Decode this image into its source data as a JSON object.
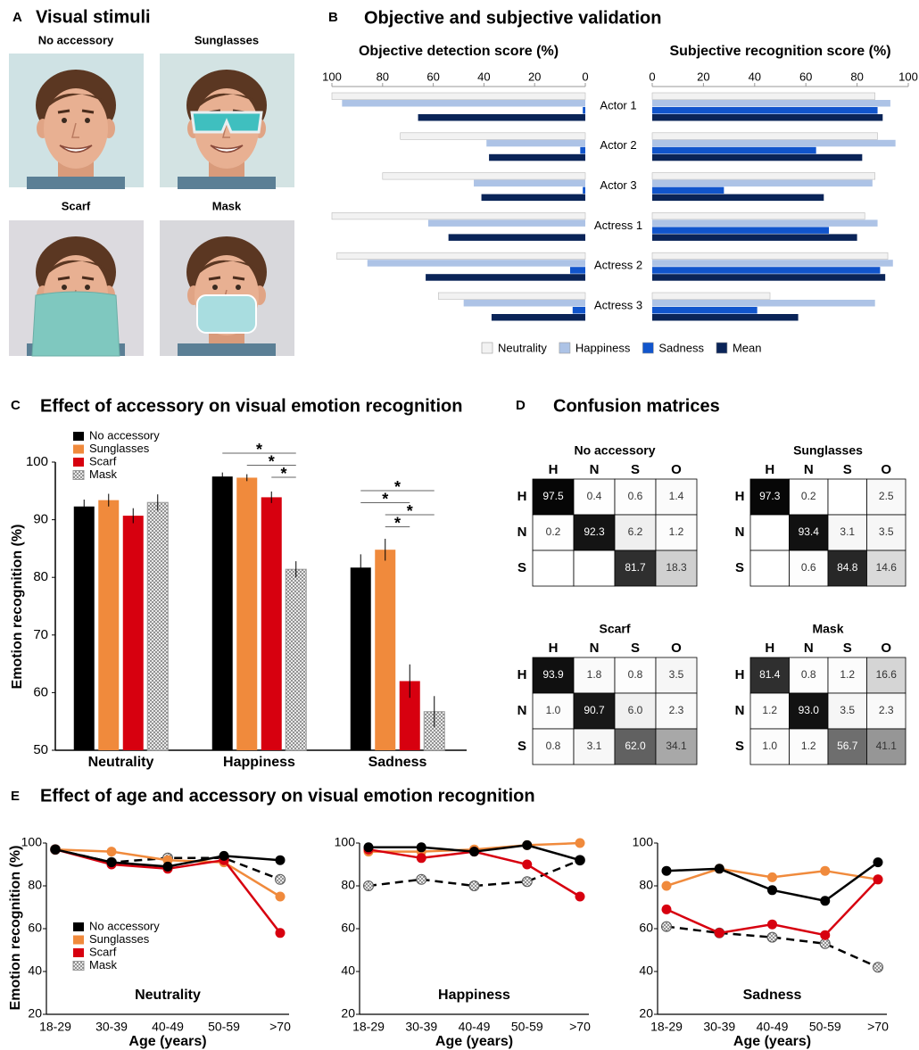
{
  "panel_a": {
    "letter": "A",
    "title": "Visual stimuli",
    "photos": [
      "No accessory",
      "Sunglasses",
      "Scarf",
      "Mask"
    ]
  },
  "chart_data": [
    {
      "type": "butterfly",
      "letter": "B",
      "title": "Objective and subjective validation",
      "categories": [
        "Actor 1",
        "Actor 2",
        "Actor 3",
        "Actress 1",
        "Actress 2",
        "Actress 3"
      ],
      "series": [
        {
          "name": "Neutrality",
          "color": "#f2f2f2"
        },
        {
          "name": "Happiness",
          "color": "#adc3e6"
        },
        {
          "name": "Sadness",
          "color": "#1155cc"
        },
        {
          "name": "Mean",
          "color": "#0a2458"
        }
      ],
      "sides": [
        {
          "title": "Objective detection score (%)",
          "reversed": true,
          "xlim": [
            0,
            100
          ],
          "xticks": [
            0,
            20,
            40,
            60,
            80,
            100
          ],
          "values": [
            [
              100,
              73,
              80,
              100,
              98,
              58
            ],
            [
              96,
              39,
              44,
              62,
              86,
              48
            ],
            [
              1,
              2,
              1,
              0,
              6,
              5
            ],
            [
              66,
              38,
              41,
              54,
              63,
              37
            ]
          ]
        },
        {
          "title": "Subjective recognition score (%)",
          "reversed": false,
          "xlim": [
            0,
            100
          ],
          "xticks": [
            0,
            20,
            40,
            60,
            80,
            100
          ],
          "values": [
            [
              87,
              88,
              87,
              83,
              92,
              46
            ],
            [
              93,
              95,
              86,
              88,
              94,
              87
            ],
            [
              88,
              64,
              28,
              69,
              89,
              41
            ],
            [
              90,
              82,
              67,
              80,
              91,
              57
            ]
          ]
        }
      ]
    },
    {
      "type": "bar",
      "letter": "C",
      "title": "Effect of accessory on visual emotion recognition",
      "ylabel": "Emotion recognition (%)",
      "categories": [
        "Neutrality",
        "Happiness",
        "Sadness"
      ],
      "series": [
        {
          "name": "No accessory",
          "color": "#000000",
          "values": [
            92.3,
            97.5,
            81.7
          ],
          "errors": [
            1.2,
            0.7,
            2.3
          ]
        },
        {
          "name": "Sunglasses",
          "color": "#f08a3c",
          "values": [
            93.4,
            97.3,
            84.8
          ],
          "errors": [
            1.1,
            0.6,
            1.9
          ]
        },
        {
          "name": "Scarf",
          "color": "#d7000f",
          "values": [
            90.7,
            93.9,
            62.0
          ],
          "errors": [
            1.3,
            1.0,
            2.9
          ]
        },
        {
          "name": "Mask",
          "color": "#c8c8c8",
          "pattern": "dots",
          "values": [
            93.0,
            81.4,
            56.7
          ],
          "errors": [
            1.4,
            1.4,
            2.7
          ]
        }
      ],
      "ylim": [
        50,
        100
      ],
      "yticks": [
        50,
        60,
        70,
        80,
        90,
        100
      ],
      "comparisons": [
        {
          "category": "Happiness",
          "from": "No accessory",
          "to": "Mask",
          "label": "*"
        },
        {
          "category": "Happiness",
          "from": "Sunglasses",
          "to": "Mask",
          "label": "*"
        },
        {
          "category": "Happiness",
          "from": "Scarf",
          "to": "Mask",
          "label": "*"
        },
        {
          "category": "Sadness",
          "from": "No accessory",
          "to": "Mask",
          "label": "*"
        },
        {
          "category": "Sadness",
          "from": "No accessory",
          "to": "Scarf",
          "label": "*"
        },
        {
          "category": "Sadness",
          "from": "Sunglasses",
          "to": "Mask",
          "label": "*"
        },
        {
          "category": "Sadness",
          "from": "Sunglasses",
          "to": "Scarf",
          "label": "*"
        }
      ]
    },
    {
      "type": "line-panels",
      "letter": "E",
      "title": "Effect of age and accessory on visual emotion recognition",
      "categories": [
        "18-29",
        "30-39",
        "40-49",
        "50-59",
        ">70"
      ],
      "xlabel": "Age (years)",
      "ylabel": "Emotion recognition (%)",
      "ylim": [
        20,
        100
      ],
      "yticks": [
        20,
        40,
        60,
        80,
        100
      ],
      "series": [
        {
          "name": "No accessory",
          "color": "#000000"
        },
        {
          "name": "Sunglasses",
          "color": "#f08a3c"
        },
        {
          "name": "Scarf",
          "color": "#d7000f"
        },
        {
          "name": "Mask",
          "color": "#000000",
          "dashed": true,
          "pattern": "dots"
        }
      ],
      "panels": [
        {
          "title": "Neutrality",
          "values": [
            [
              97,
              91,
              89,
              94,
              92
            ],
            [
              97,
              96,
              92,
              91,
              75
            ],
            [
              97,
              90,
              88,
              92,
              58
            ],
            [
              97,
              91,
              93,
              93,
              83
            ]
          ]
        },
        {
          "title": "Happiness",
          "values": [
            [
              98,
              98,
              96,
              99,
              92
            ],
            [
              96,
              96,
              97,
              99,
              100
            ],
            [
              97,
              93,
              96,
              90,
              75
            ],
            [
              80,
              83,
              80,
              82,
              92
            ]
          ]
        },
        {
          "title": "Sadness",
          "values": [
            [
              87,
              88,
              78,
              73,
              91
            ],
            [
              80,
              88,
              84,
              87,
              83
            ],
            [
              69,
              58,
              62,
              57,
              83
            ],
            [
              61,
              58,
              56,
              53,
              42
            ]
          ]
        }
      ]
    }
  ],
  "confusion": {
    "letter": "D",
    "title": "Confusion matrices",
    "columns": [
      "H",
      "N",
      "S",
      "O"
    ],
    "rows": [
      "H",
      "N",
      "S"
    ],
    "matrices": [
      {
        "title": "No accessory",
        "values": [
          [
            97.5,
            0.4,
            0.6,
            1.4
          ],
          [
            0.2,
            92.3,
            6.2,
            1.2
          ],
          [
            null,
            null,
            81.7,
            18.3
          ]
        ],
        "value_labels": [
          [
            "97.5",
            "0.4",
            "0.6",
            "1.4"
          ],
          [
            "0.2",
            "92.3",
            "6.2",
            "1.2"
          ],
          [
            null,
            null,
            "81.7",
            "18.3"
          ]
        ]
      },
      {
        "title": "Sunglasses",
        "values": [
          [
            97.3,
            0.2,
            null,
            2.5
          ],
          [
            null,
            93.4,
            3.1,
            3.5
          ],
          [
            null,
            0.6,
            84.8,
            14.6
          ]
        ],
        "value_labels": [
          [
            "97.3",
            "0.2",
            null,
            "2.5"
          ],
          [
            null,
            "93.4",
            "3.1",
            "3.5"
          ],
          [
            null,
            "0.6",
            "84.8",
            "14.6"
          ]
        ]
      },
      {
        "title": "Scarf",
        "values": [
          [
            93.9,
            1.8,
            0.8,
            3.5
          ],
          [
            1.0,
            90.7,
            6.0,
            2.3
          ],
          [
            0.8,
            3.1,
            62.0,
            34.1
          ]
        ],
        "value_labels": [
          [
            "93.9",
            "1.8",
            "0.8",
            "3.5"
          ],
          [
            "1.0",
            "90.7",
            "6.0",
            "2.3"
          ],
          [
            "0.8",
            "3.1",
            "62.0",
            "34.1"
          ]
        ]
      },
      {
        "title": "Mask",
        "values": [
          [
            81.4,
            0.8,
            1.2,
            16.6
          ],
          [
            1.2,
            93.0,
            3.5,
            2.3
          ],
          [
            1.0,
            1.2,
            56.7,
            41.1
          ]
        ],
        "value_labels": [
          [
            "81.4",
            "0.8",
            "1.2",
            "16.6"
          ],
          [
            "1.2",
            "93.0",
            "3.5",
            "2.3"
          ],
          [
            "1.0",
            "1.2",
            "56.7",
            "41.1"
          ]
        ]
      }
    ]
  }
}
